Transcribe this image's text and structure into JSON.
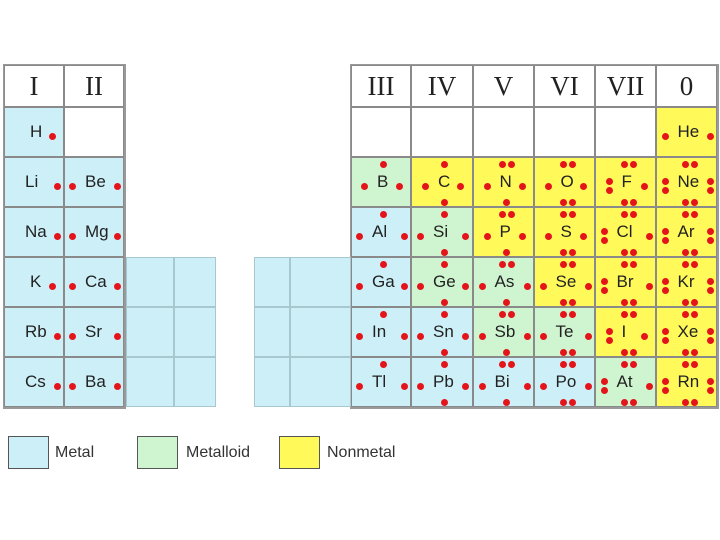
{
  "colors": {
    "metal": "#cdf0f8",
    "metalloid": "#cef5cf",
    "nonmetal": "#fffa5a",
    "empty": "#ffffff",
    "dot": "#e4141b"
  },
  "groups_left": [
    "I",
    "II"
  ],
  "groups_right": [
    "III",
    "IV",
    "V",
    "VI",
    "VII",
    "0"
  ],
  "legend": [
    {
      "label": "Metal",
      "category": "metal"
    },
    {
      "label": "Metalloid",
      "category": "metalloid"
    },
    {
      "label": "Nonmetal",
      "category": "nonmetal"
    }
  ],
  "rows": [
    {
      "left": [
        {
          "symbol": "H",
          "electrons": 1,
          "category": "metal"
        },
        null
      ],
      "right": [
        null,
        null,
        null,
        null,
        null,
        {
          "symbol": "He",
          "electrons": 2,
          "category": "nonmetal"
        }
      ]
    },
    {
      "left": [
        {
          "symbol": "Li",
          "electrons": 1,
          "category": "metal"
        },
        {
          "symbol": "Be",
          "electrons": 2,
          "category": "metal"
        }
      ],
      "right": [
        {
          "symbol": "B",
          "electrons": 3,
          "category": "metalloid"
        },
        {
          "symbol": "C",
          "electrons": 4,
          "category": "nonmetal"
        },
        {
          "symbol": "N",
          "electrons": 5,
          "category": "nonmetal"
        },
        {
          "symbol": "O",
          "electrons": 6,
          "category": "nonmetal"
        },
        {
          "symbol": "F",
          "electrons": 7,
          "category": "nonmetal"
        },
        {
          "symbol": "Ne",
          "electrons": 8,
          "category": "nonmetal"
        }
      ]
    },
    {
      "left": [
        {
          "symbol": "Na",
          "electrons": 1,
          "category": "metal"
        },
        {
          "symbol": "Mg",
          "electrons": 2,
          "category": "metal"
        }
      ],
      "right": [
        {
          "symbol": "Al",
          "electrons": 3,
          "category": "metal"
        },
        {
          "symbol": "Si",
          "electrons": 4,
          "category": "metalloid"
        },
        {
          "symbol": "P",
          "electrons": 5,
          "category": "nonmetal"
        },
        {
          "symbol": "S",
          "electrons": 6,
          "category": "nonmetal"
        },
        {
          "symbol": "Cl",
          "electrons": 7,
          "category": "nonmetal"
        },
        {
          "symbol": "Ar",
          "electrons": 8,
          "category": "nonmetal"
        }
      ]
    },
    {
      "left": [
        {
          "symbol": "K",
          "electrons": 1,
          "category": "metal"
        },
        {
          "symbol": "Ca",
          "electrons": 2,
          "category": "metal"
        }
      ],
      "right": [
        {
          "symbol": "Ga",
          "electrons": 3,
          "category": "metal"
        },
        {
          "symbol": "Ge",
          "electrons": 4,
          "category": "metalloid"
        },
        {
          "symbol": "As",
          "electrons": 5,
          "category": "metalloid"
        },
        {
          "symbol": "Se",
          "electrons": 6,
          "category": "nonmetal"
        },
        {
          "symbol": "Br",
          "electrons": 7,
          "category": "nonmetal"
        },
        {
          "symbol": "Kr",
          "electrons": 8,
          "category": "nonmetal"
        }
      ]
    },
    {
      "left": [
        {
          "symbol": "Rb",
          "electrons": 1,
          "category": "metal"
        },
        {
          "symbol": "Sr",
          "electrons": 2,
          "category": "metal"
        }
      ],
      "right": [
        {
          "symbol": "In",
          "electrons": 3,
          "category": "metal"
        },
        {
          "symbol": "Sn",
          "electrons": 4,
          "category": "metal"
        },
        {
          "symbol": "Sb",
          "electrons": 5,
          "category": "metalloid"
        },
        {
          "symbol": "Te",
          "electrons": 6,
          "category": "metalloid"
        },
        {
          "symbol": "I",
          "electrons": 7,
          "category": "nonmetal"
        },
        {
          "symbol": "Xe",
          "electrons": 8,
          "category": "nonmetal"
        }
      ]
    },
    {
      "left": [
        {
          "symbol": "Cs",
          "electrons": 1,
          "category": "metal"
        },
        {
          "symbol": "Ba",
          "electrons": 2,
          "category": "metal"
        }
      ],
      "right": [
        {
          "symbol": "Tl",
          "electrons": 3,
          "category": "metal"
        },
        {
          "symbol": "Pb",
          "electrons": 4,
          "category": "metal"
        },
        {
          "symbol": "Bi",
          "electrons": 5,
          "category": "metal"
        },
        {
          "symbol": "Po",
          "electrons": 6,
          "category": "metal"
        },
        {
          "symbol": "At",
          "electrons": 7,
          "category": "metalloid"
        },
        {
          "symbol": "Rn",
          "electrons": 8,
          "category": "nonmetal"
        }
      ]
    }
  ],
  "transition_blocks": {
    "category": "metal",
    "rows": [
      3,
      4,
      5
    ]
  }
}
